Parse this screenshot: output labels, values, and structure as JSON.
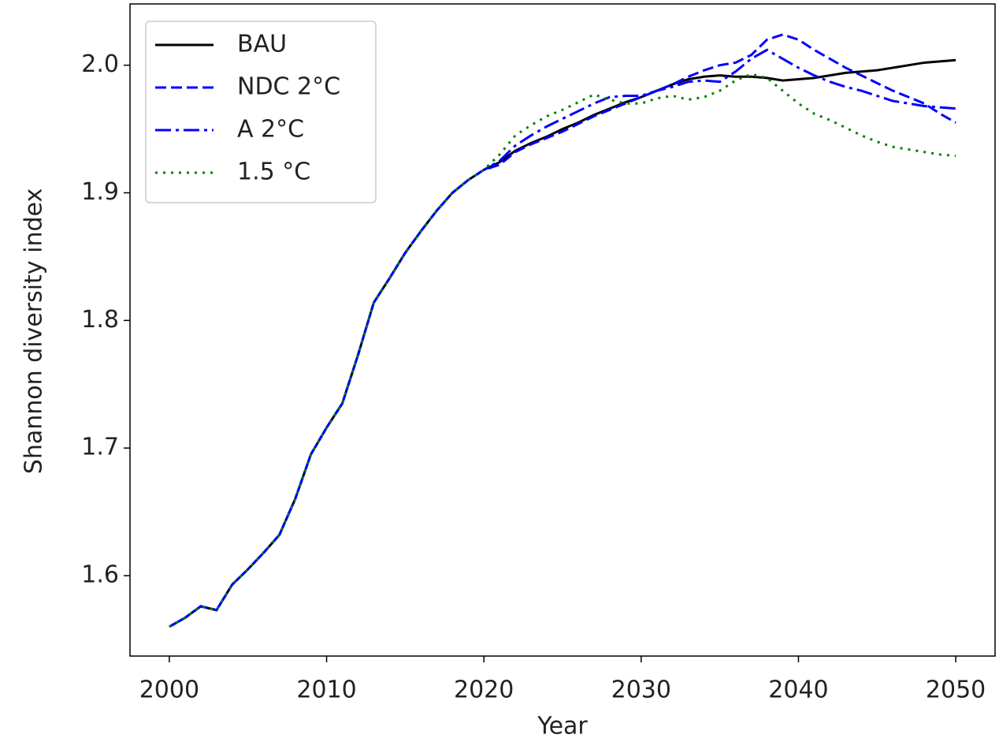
{
  "chart_data": {
    "type": "line",
    "xlabel": "Year",
    "ylabel": "Shannon diversity index",
    "x": [
      2000,
      2001,
      2002,
      2003,
      2004,
      2005,
      2006,
      2007,
      2008,
      2009,
      2010,
      2011,
      2012,
      2013,
      2014,
      2015,
      2016,
      2017,
      2018,
      2019,
      2020,
      2021,
      2022,
      2023,
      2024,
      2025,
      2026,
      2027,
      2028,
      2029,
      2030,
      2031,
      2032,
      2033,
      2034,
      2035,
      2036,
      2037,
      2038,
      2039,
      2040,
      2041,
      2042,
      2043,
      2044,
      2045,
      2046,
      2047,
      2048,
      2049,
      2050
    ],
    "series": [
      {
        "name": "BAU",
        "color": "#000000",
        "linestyle": "solid",
        "values": [
          1.56,
          1.567,
          1.576,
          1.573,
          1.593,
          1.605,
          1.618,
          1.632,
          1.66,
          1.695,
          1.716,
          1.735,
          1.773,
          1.814,
          1.833,
          1.853,
          1.87,
          1.886,
          1.9,
          1.91,
          1.918,
          1.924,
          1.933,
          1.939,
          1.944,
          1.95,
          1.955,
          1.961,
          1.966,
          1.971,
          1.975,
          1.98,
          1.985,
          1.989,
          1.991,
          1.992,
          1.991,
          1.991,
          1.99,
          1.988,
          1.989,
          1.99,
          1.992,
          1.994,
          1.995,
          1.996,
          1.998,
          2.0,
          2.002,
          2.003,
          2.004
        ]
      },
      {
        "name": "NDC 2°C",
        "color": "#0000ff",
        "linestyle": "dashed",
        "values": [
          1.56,
          1.567,
          1.576,
          1.573,
          1.593,
          1.605,
          1.618,
          1.632,
          1.66,
          1.695,
          1.716,
          1.735,
          1.773,
          1.814,
          1.833,
          1.853,
          1.87,
          1.886,
          1.9,
          1.91,
          1.918,
          1.922,
          1.932,
          1.938,
          1.943,
          1.948,
          1.954,
          1.96,
          1.965,
          1.97,
          1.975,
          1.98,
          1.985,
          1.991,
          1.996,
          2.0,
          2.002,
          2.008,
          2.02,
          2.024,
          2.02,
          2.012,
          2.005,
          1.998,
          1.992,
          1.986,
          1.98,
          1.975,
          1.97,
          1.962,
          1.955
        ]
      },
      {
        "name": "A 2°C",
        "color": "#0000ff",
        "linestyle": "dashdot",
        "values": [
          1.56,
          1.567,
          1.576,
          1.573,
          1.593,
          1.605,
          1.618,
          1.632,
          1.66,
          1.695,
          1.716,
          1.735,
          1.773,
          1.814,
          1.833,
          1.853,
          1.87,
          1.886,
          1.9,
          1.91,
          1.918,
          1.925,
          1.937,
          1.945,
          1.952,
          1.958,
          1.964,
          1.97,
          1.975,
          1.976,
          1.976,
          1.98,
          1.983,
          1.987,
          1.988,
          1.987,
          1.995,
          2.005,
          2.012,
          2.005,
          1.998,
          1.992,
          1.987,
          1.983,
          1.98,
          1.976,
          1.972,
          1.97,
          1.968,
          1.967,
          1.966
        ]
      },
      {
        "name": "1.5 °C",
        "color": "#008000",
        "linestyle": "dotted",
        "values": [
          1.56,
          1.567,
          1.576,
          1.573,
          1.593,
          1.605,
          1.618,
          1.632,
          1.66,
          1.695,
          1.716,
          1.735,
          1.773,
          1.814,
          1.833,
          1.853,
          1.87,
          1.886,
          1.9,
          1.91,
          1.918,
          1.93,
          1.945,
          1.953,
          1.96,
          1.965,
          1.971,
          1.977,
          1.973,
          1.97,
          1.97,
          1.974,
          1.976,
          1.973,
          1.975,
          1.98,
          1.988,
          1.993,
          1.99,
          1.98,
          1.97,
          1.962,
          1.957,
          1.951,
          1.945,
          1.94,
          1.936,
          1.934,
          1.932,
          1.93,
          1.929
        ]
      }
    ],
    "xlim": [
      1997.5,
      2052.5
    ],
    "xticks": [
      2000,
      2010,
      2020,
      2030,
      2040,
      2050
    ],
    "ylim": [
      1.537,
      2.048
    ],
    "yticks": [
      1.6,
      1.7,
      1.8,
      1.9,
      {
        "value": 2,
        "label": "2.0"
      }
    ],
    "grid": false,
    "legend": "upper left"
  }
}
